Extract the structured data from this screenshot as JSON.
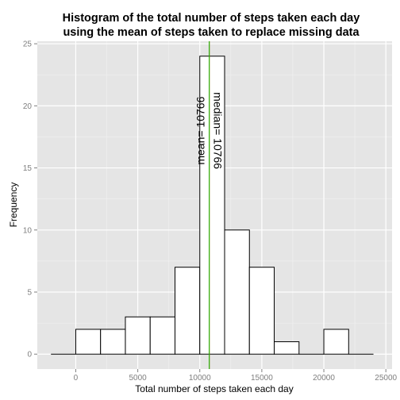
{
  "chart_data": {
    "type": "bar",
    "title_line1": "Histogram of the total number of steps taken each day",
    "title_line2": "using the mean of steps taken to replace missing data",
    "xlabel": "Total number of steps taken each day",
    "ylabel": "Frequency",
    "xlim": [
      -3100,
      25500
    ],
    "ylim": [
      -1.2,
      25.2
    ],
    "x_ticks": [
      0,
      5000,
      10000,
      15000,
      20000,
      25000
    ],
    "y_ticks": [
      0,
      5,
      10,
      15,
      20,
      25
    ],
    "grid": true,
    "bins": [
      {
        "x0": -2000,
        "x1": 0,
        "count": 0
      },
      {
        "x0": 0,
        "x1": 2000,
        "count": 2
      },
      {
        "x0": 2000,
        "x1": 4000,
        "count": 2
      },
      {
        "x0": 4000,
        "x1": 6000,
        "count": 3
      },
      {
        "x0": 6000,
        "x1": 8000,
        "count": 3
      },
      {
        "x0": 8000,
        "x1": 10000,
        "count": 7
      },
      {
        "x0": 10000,
        "x1": 12000,
        "count": 24
      },
      {
        "x0": 12000,
        "x1": 14000,
        "count": 10
      },
      {
        "x0": 14000,
        "x1": 16000,
        "count": 7
      },
      {
        "x0": 16000,
        "x1": 18000,
        "count": 1
      },
      {
        "x0": 18000,
        "x1": 20000,
        "count": 0
      },
      {
        "x0": 20000,
        "x1": 22000,
        "count": 2
      },
      {
        "x0": 22000,
        "x1": 24000,
        "count": 0
      }
    ],
    "mean_value": 10766,
    "median_value": 10766,
    "mean_label": "mean= 10766",
    "median_label": "median= 10766",
    "colors": {
      "panel": "#e5e5e5",
      "grid_major": "#ffffff",
      "grid_minor": "#f2f2f2",
      "bar_fill": "#ffffff",
      "bar_stroke": "#000000",
      "mean_line": "#00cc00",
      "median_line": "#ff0000"
    }
  }
}
